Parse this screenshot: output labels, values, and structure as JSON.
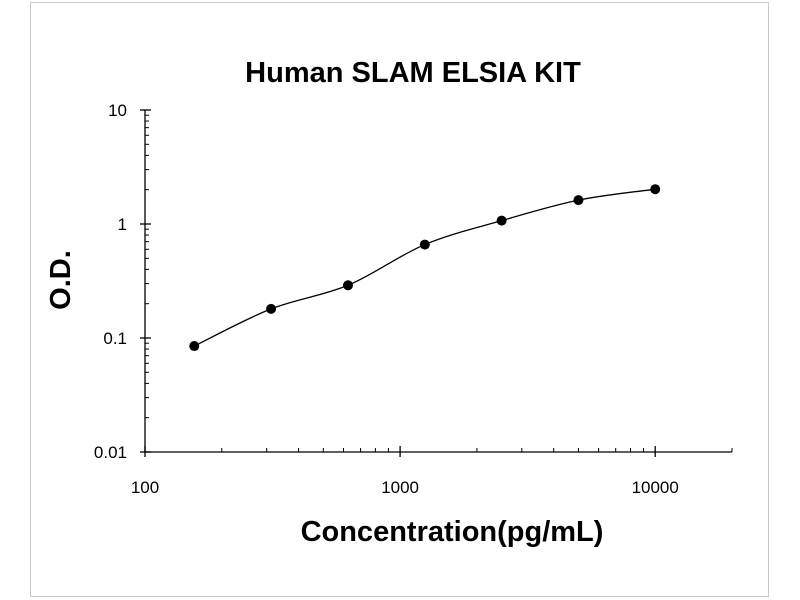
{
  "chart_data": {
    "type": "scatter",
    "title": "Human SLAM ELSIA KIT",
    "xlabel": "Concentration(pg/mL)",
    "ylabel": "O.D.",
    "x_scale": "log",
    "y_scale": "log",
    "xlim": [
      100,
      20000
    ],
    "ylim": [
      0.01,
      10
    ],
    "x_ticks": [
      100,
      1000,
      10000
    ],
    "x_tick_labels": [
      "100",
      "1000",
      "10000"
    ],
    "y_ticks": [
      0.01,
      0.1,
      1,
      10
    ],
    "y_tick_labels": [
      "0.01",
      "0.1",
      "1",
      "10"
    ],
    "series": [
      {
        "x": [
          156,
          312,
          625,
          1250,
          2500,
          5000,
          10000
        ],
        "y": [
          0.085,
          0.18,
          0.29,
          0.66,
          1.07,
          1.62,
          2.02
        ],
        "marker": "circle",
        "color": "#000000",
        "fit_line": true
      }
    ],
    "grid": false,
    "legend": "none"
  },
  "colors": {
    "marks": "#000000",
    "frame": "#c8c8c8",
    "background": "#ffffff"
  }
}
